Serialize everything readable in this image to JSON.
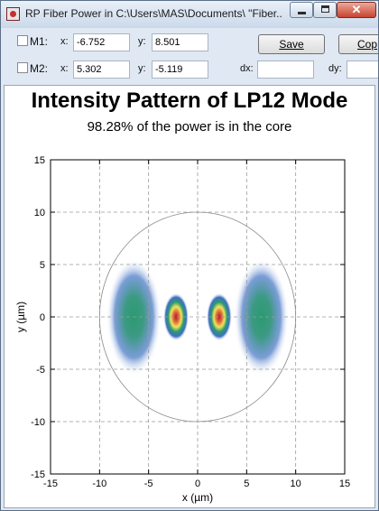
{
  "window": {
    "title": "RP Fiber Power in C:\\Users\\MAS\\Documents\\ \"Fiber...",
    "close_glyph": "✕"
  },
  "toolbar": {
    "m1": {
      "label": "M1:",
      "x_label": "x:",
      "x_value": "-6.752",
      "y_label": "y:",
      "y_value": "8.501"
    },
    "m2": {
      "label": "M2:",
      "x_label": "x:",
      "x_value": "5.302",
      "y_label": "y:",
      "y_value": "-5.119"
    },
    "dx_label": "dx:",
    "dx_value": "",
    "dy_label": "dy:",
    "dy_value": "",
    "save_label": "Save",
    "copy_label": "Cop"
  },
  "chart_data": {
    "type": "heatmap",
    "title": "Intensity Pattern of LP12 Mode",
    "subtitle": "98.28% of the power is in the core",
    "xlabel": "x (µm)",
    "ylabel": "y (µm)",
    "xlim": [
      -15,
      15
    ],
    "ylim": [
      -15,
      15
    ],
    "x_ticks": [
      -15,
      -10,
      -5,
      0,
      5,
      10,
      15
    ],
    "y_ticks": [
      -15,
      -10,
      -5,
      0,
      5,
      10,
      15
    ],
    "grid": true,
    "core_radius": 10,
    "lobes": [
      {
        "x": -2.2,
        "y": 0,
        "relative_intensity": 1.0
      },
      {
        "x": 2.2,
        "y": 0,
        "relative_intensity": 1.0
      },
      {
        "x": -6.5,
        "y": 0,
        "relative_intensity": 0.45
      },
      {
        "x": 6.5,
        "y": 0,
        "relative_intensity": 0.45
      }
    ],
    "colormap": [
      "#ffffff",
      "#3f6ec4",
      "#2b9a70",
      "#f2e45c",
      "#c0152f"
    ]
  }
}
